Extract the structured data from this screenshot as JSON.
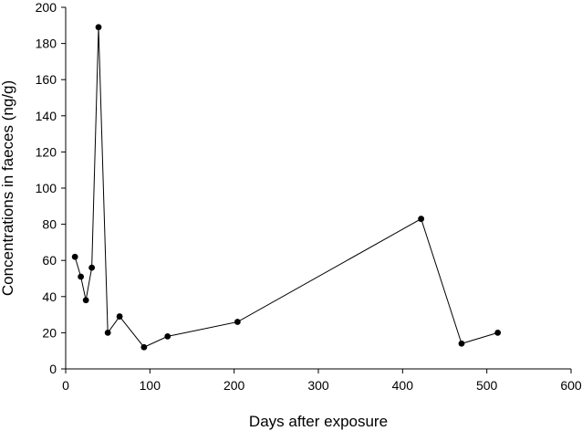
{
  "chart_data": {
    "type": "line",
    "title": "",
    "xlabel": "Days after exposure",
    "ylabel": "Concentrations in faeces (ng/g)",
    "xlim": [
      0,
      600
    ],
    "ylim": [
      0,
      200
    ],
    "xticks": [
      0,
      100,
      200,
      300,
      400,
      500,
      600
    ],
    "yticks": [
      0,
      20,
      40,
      60,
      80,
      100,
      120,
      140,
      160,
      180,
      200
    ],
    "grid": false,
    "legend": "none",
    "marker": "filled-circle",
    "line_color": "#000000",
    "series": [
      {
        "x": [
          11,
          18,
          24,
          31,
          39,
          50,
          64,
          93,
          121,
          204,
          422,
          470,
          513
        ],
        "y": [
          62,
          51,
          38,
          56,
          189,
          20,
          29,
          12,
          18,
          26,
          83,
          14,
          20
        ]
      }
    ]
  }
}
